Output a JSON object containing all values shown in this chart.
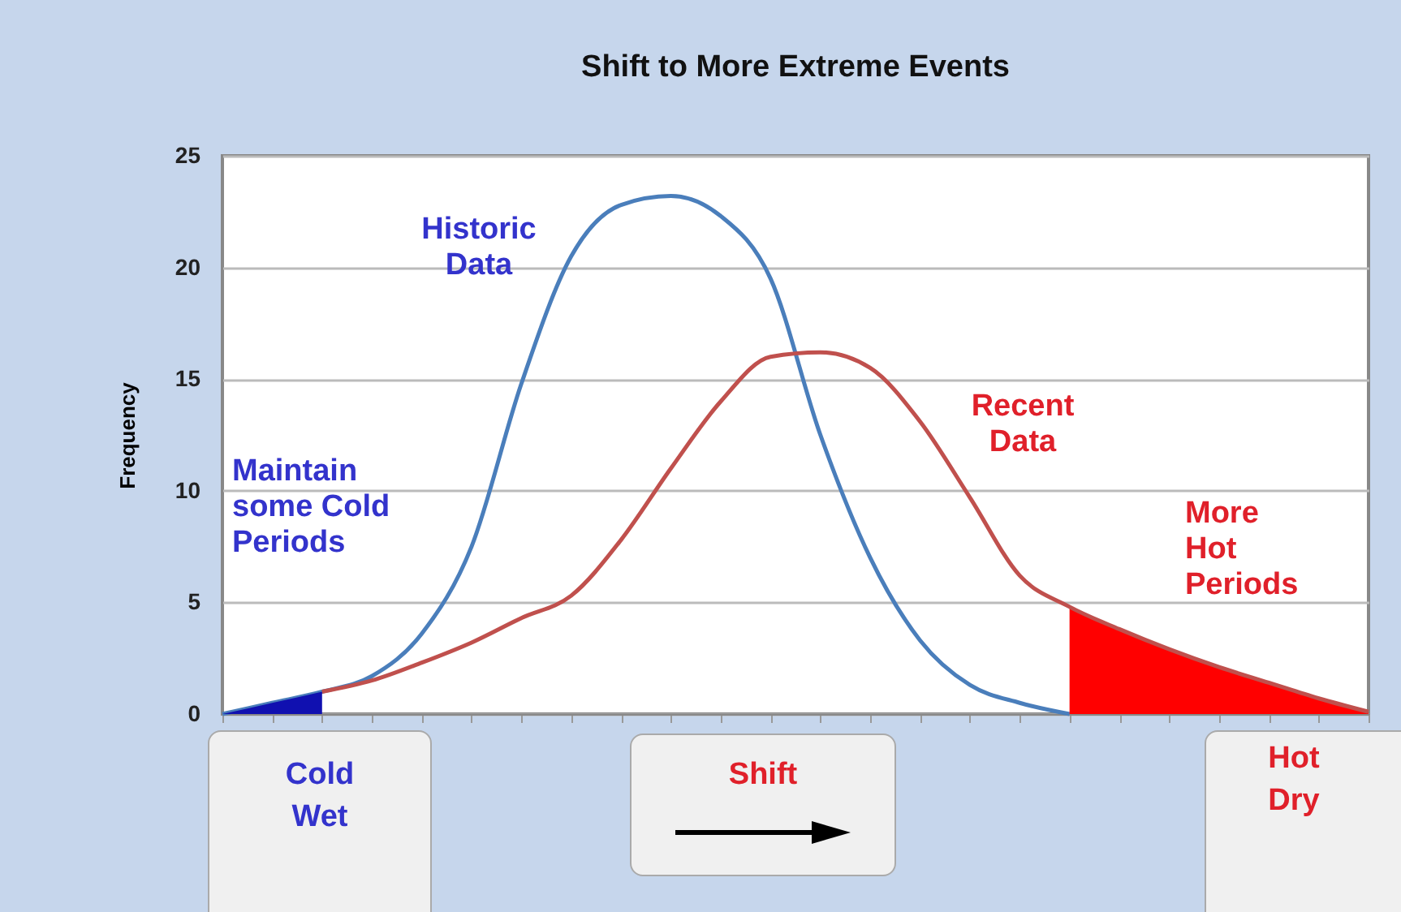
{
  "chart_data": {
    "type": "line",
    "title": "Shift to More Extreme Events",
    "ylabel": "Frequency",
    "categories": [
      null,
      null,
      null,
      null,
      null,
      null,
      null,
      null,
      null,
      null,
      null,
      null,
      null,
      null,
      null,
      null,
      null,
      null,
      null,
      null,
      null,
      null,
      null,
      null
    ],
    "series": [
      {
        "name": "Historic Data",
        "color": "#4a7ebb",
        "values": [
          0,
          0.5,
          1.0,
          1.7,
          3.6,
          7.5,
          14.8,
          20.5,
          22.8,
          23.2,
          22.3,
          19.5,
          12.5,
          7,
          3.3,
          1.3,
          0.5,
          0,
          null,
          null,
          null,
          null,
          null,
          null
        ]
      },
      {
        "name": "Recent Data",
        "color": "#c0504d",
        "values": [
          null,
          null,
          1.0,
          1.5,
          2.3,
          3.2,
          4.3,
          5.3,
          7.8,
          11,
          14,
          16,
          16.2,
          15.5,
          13.1,
          9.7,
          6.2,
          4.8,
          3.8,
          2.9,
          2.1,
          1.4,
          0.7,
          0.1
        ]
      },
      {
        "type": "area",
        "color": "#1010b0",
        "values": [
          0,
          0.5,
          1.0,
          null,
          null,
          null,
          null,
          null,
          null,
          null,
          null,
          null,
          null,
          null,
          null,
          null,
          null,
          null,
          null,
          null,
          null,
          null,
          null,
          null
        ]
      },
      {
        "type": "area",
        "color": "#ff0000",
        "values": [
          null,
          null,
          null,
          null,
          null,
          null,
          null,
          null,
          null,
          null,
          null,
          null,
          null,
          null,
          null,
          null,
          null,
          4.8,
          3.8,
          2.9,
          2.1,
          1.4,
          0.7,
          0.1
        ]
      }
    ],
    "ylim": [
      0,
      25
    ],
    "yticks": [
      0,
      5,
      10,
      15,
      20,
      25
    ],
    "grid": "y",
    "tick_labels": "y",
    "annotations": [
      "Maintain some Cold Periods",
      "More Hot Periods",
      "Cold Wet",
      "Shift",
      "Hot Dry"
    ]
  }
}
